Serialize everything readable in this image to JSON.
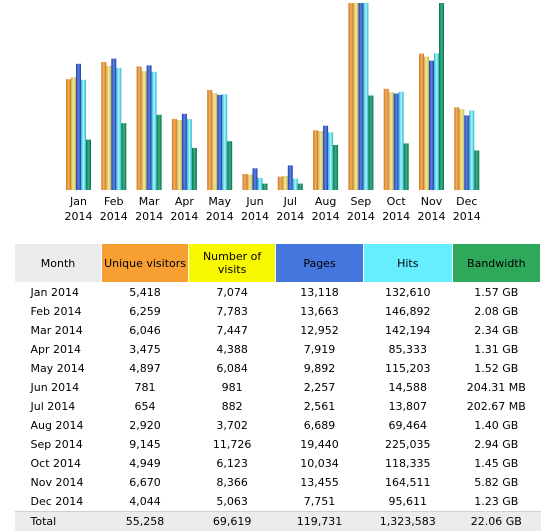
{
  "colors": {
    "unique_visitors": "#f89f33",
    "number_of_visits": "#f8f800",
    "pages": "#4477dd",
    "hits": "#66eeff",
    "bandwidth": "#2ea85a"
  },
  "chart_data": {
    "type": "bar",
    "categories": [
      "Jan 2014",
      "Feb 2014",
      "Mar 2014",
      "Apr 2014",
      "May 2014",
      "Jun 2014",
      "Jul 2014",
      "Aug 2014",
      "Sep 2014",
      "Oct 2014",
      "Nov 2014",
      "Dec 2014"
    ],
    "category_lines": [
      [
        "Jan",
        "2014"
      ],
      [
        "Feb",
        "2014"
      ],
      [
        "Mar",
        "2014"
      ],
      [
        "Apr",
        "2014"
      ],
      [
        "May",
        "2014"
      ],
      [
        "Jun",
        "2014"
      ],
      [
        "Jul",
        "2014"
      ],
      [
        "Aug",
        "2014"
      ],
      [
        "Sep",
        "2014"
      ],
      [
        "Oct",
        "2014"
      ],
      [
        "Nov",
        "2014"
      ],
      [
        "Dec",
        "2014"
      ]
    ],
    "series": [
      {
        "name": "Unique visitors",
        "values": [
          5418,
          6259,
          6046,
          3475,
          4897,
          781,
          654,
          2920,
          9145,
          4949,
          6670,
          4044
        ]
      },
      {
        "name": "Number of visits",
        "values": [
          7074,
          7783,
          7447,
          4388,
          6084,
          981,
          882,
          3702,
          11726,
          6123,
          8366,
          5063
        ]
      },
      {
        "name": "Pages",
        "values": [
          13118,
          13663,
          12952,
          7919,
          9892,
          2257,
          2561,
          6689,
          19440,
          10034,
          13455,
          7751
        ]
      },
      {
        "name": "Hits",
        "values": [
          132610,
          146892,
          142194,
          85333,
          115203,
          14588,
          13807,
          69464,
          225035,
          118335,
          164511,
          95611
        ]
      },
      {
        "name": "Bandwidth",
        "values": [
          1.57,
          2.08,
          2.34,
          1.31,
          1.52,
          0.1995,
          0.198,
          1.4,
          2.94,
          1.45,
          5.82,
          1.23
        ]
      }
    ]
  },
  "table": {
    "headers": {
      "month": "Month",
      "unique_visitors": "Unique visitors",
      "number_of_visits": "Number of visits",
      "pages": "Pages",
      "hits": "Hits",
      "bandwidth": "Bandwidth"
    },
    "rows": [
      {
        "month": "Jan 2014",
        "uv": "5,418",
        "nv": "7,074",
        "pages": "13,118",
        "hits": "132,610",
        "bw": "1.57 GB"
      },
      {
        "month": "Feb 2014",
        "uv": "6,259",
        "nv": "7,783",
        "pages": "13,663",
        "hits": "146,892",
        "bw": "2.08 GB"
      },
      {
        "month": "Mar 2014",
        "uv": "6,046",
        "nv": "7,447",
        "pages": "12,952",
        "hits": "142,194",
        "bw": "2.34 GB"
      },
      {
        "month": "Apr 2014",
        "uv": "3,475",
        "nv": "4,388",
        "pages": "7,919",
        "hits": "85,333",
        "bw": "1.31 GB"
      },
      {
        "month": "May 2014",
        "uv": "4,897",
        "nv": "6,084",
        "pages": "9,892",
        "hits": "115,203",
        "bw": "1.52 GB"
      },
      {
        "month": "Jun 2014",
        "uv": "781",
        "nv": "981",
        "pages": "2,257",
        "hits": "14,588",
        "bw": "204.31 MB"
      },
      {
        "month": "Jul 2014",
        "uv": "654",
        "nv": "882",
        "pages": "2,561",
        "hits": "13,807",
        "bw": "202.67 MB"
      },
      {
        "month": "Aug 2014",
        "uv": "2,920",
        "nv": "3,702",
        "pages": "6,689",
        "hits": "69,464",
        "bw": "1.40 GB"
      },
      {
        "month": "Sep 2014",
        "uv": "9,145",
        "nv": "11,726",
        "pages": "19,440",
        "hits": "225,035",
        "bw": "2.94 GB"
      },
      {
        "month": "Oct 2014",
        "uv": "4,949",
        "nv": "6,123",
        "pages": "10,034",
        "hits": "118,335",
        "bw": "1.45 GB"
      },
      {
        "month": "Nov 2014",
        "uv": "6,670",
        "nv": "8,366",
        "pages": "13,455",
        "hits": "164,511",
        "bw": "5.82 GB"
      },
      {
        "month": "Dec 2014",
        "uv": "4,044",
        "nv": "5,063",
        "pages": "7,751",
        "hits": "95,611",
        "bw": "1.23 GB"
      }
    ],
    "total": {
      "label": "Total",
      "uv": "55,258",
      "nv": "69,619",
      "pages": "119,731",
      "hits": "1,323,583",
      "bw": "22.06 GB"
    }
  }
}
